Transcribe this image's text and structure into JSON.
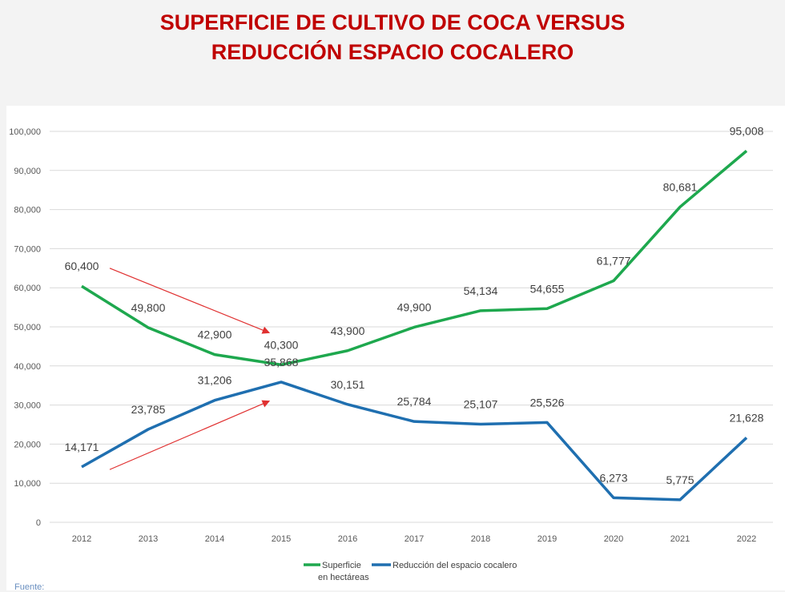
{
  "title": {
    "line1": "SUPERFICIE DE CULTIVO DE COCA VERSUS",
    "line2": "REDUCCIÓN ESPACIO COCALERO"
  },
  "source_label": "Fuente:",
  "chart_data": {
    "type": "line",
    "title": "SUPERFICIE DE CULTIVO DE COCA VERSUS REDUCCIÓN ESPACIO COCALERO",
    "categories": [
      "2012",
      "2013",
      "2014",
      "2015",
      "2016",
      "2017",
      "2018",
      "2019",
      "2020",
      "2021",
      "2022"
    ],
    "ylim": [
      0,
      100000
    ],
    "yticks": [
      "0",
      "10,000",
      "20,000",
      "30,000",
      "40,000",
      "50,000",
      "60,000",
      "70,000",
      "80,000",
      "90,000",
      "100,000"
    ],
    "grid": true,
    "legend_position": "bottom",
    "series": [
      {
        "name": "Superficie en hectáreas",
        "legend_line1": "Superficie",
        "legend_line2": "en hectáreas",
        "color": "#1ea84e",
        "values": [
          60400,
          49800,
          42900,
          40300,
          43900,
          49900,
          54134,
          54655,
          61777,
          80681,
          95008
        ],
        "labels": [
          "60,400",
          "49,800",
          "42,900",
          "40,300",
          "43,900",
          "49,900",
          "54,134",
          "54,655",
          "61,777",
          "80,681",
          "95,008"
        ]
      },
      {
        "name": "Reducción del espacio cocalero",
        "color": "#1f6fb0",
        "values": [
          14171,
          23785,
          31206,
          35868,
          30151,
          25784,
          25107,
          25526,
          6273,
          5775,
          21628
        ],
        "labels": [
          "14,171",
          "23,785",
          "31,206",
          "35,868",
          "30,151",
          "25,784",
          "25,107",
          "25,526",
          "6,273",
          "5,775",
          "21,628"
        ]
      }
    ],
    "annotations": [
      {
        "type": "arrow",
        "color": "#e03030",
        "from": [
          "2012",
          65000
        ],
        "to": [
          "2015",
          48500
        ]
      },
      {
        "type": "arrow",
        "color": "#e03030",
        "from": [
          "2012",
          13500
        ],
        "to": [
          "2015",
          31000
        ]
      }
    ]
  }
}
